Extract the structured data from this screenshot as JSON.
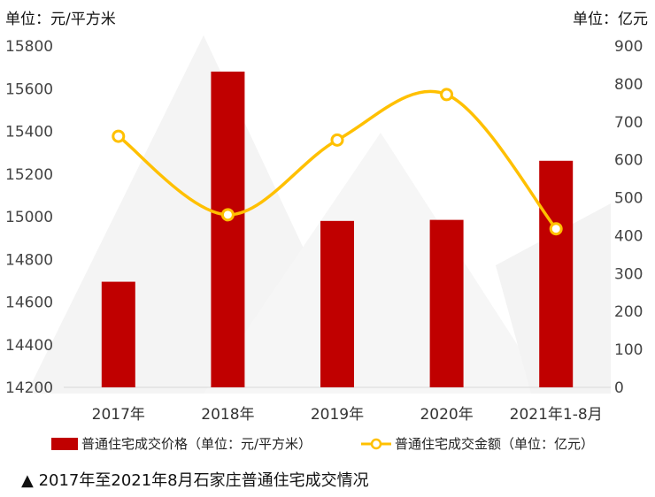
{
  "chart_data": {
    "type": "bar",
    "categories": [
      "2017年",
      "2018年",
      "2019年",
      "2020年",
      "2021年1-8月"
    ],
    "series": [
      {
        "name": "普通住宅成交价格（单位：元/平方米）",
        "type": "bar",
        "axis": "left",
        "color": "#c00000",
        "values": [
          14695,
          15680,
          14980,
          14985,
          15262
        ]
      },
      {
        "name": "普通住宅成交金额（单位：亿元）",
        "type": "line",
        "axis": "right",
        "color": "#ffc000",
        "values": [
          662,
          455,
          652,
          772,
          418
        ]
      }
    ],
    "left_axis": {
      "unit_label": "单位：元/平方米",
      "ylim": [
        14200,
        15800
      ],
      "ticks": [
        14200,
        14400,
        14600,
        14800,
        15000,
        15200,
        15400,
        15600,
        15800
      ]
    },
    "right_axis": {
      "unit_label": "单位：亿元",
      "ylim": [
        0,
        900
      ],
      "ticks": [
        0,
        100,
        200,
        300,
        400,
        500,
        600,
        700,
        800,
        900
      ]
    },
    "legend_position": "bottom",
    "grid": false
  },
  "caption": "▲ 2017年至2021年8月石家庄普通住宅成交情况"
}
